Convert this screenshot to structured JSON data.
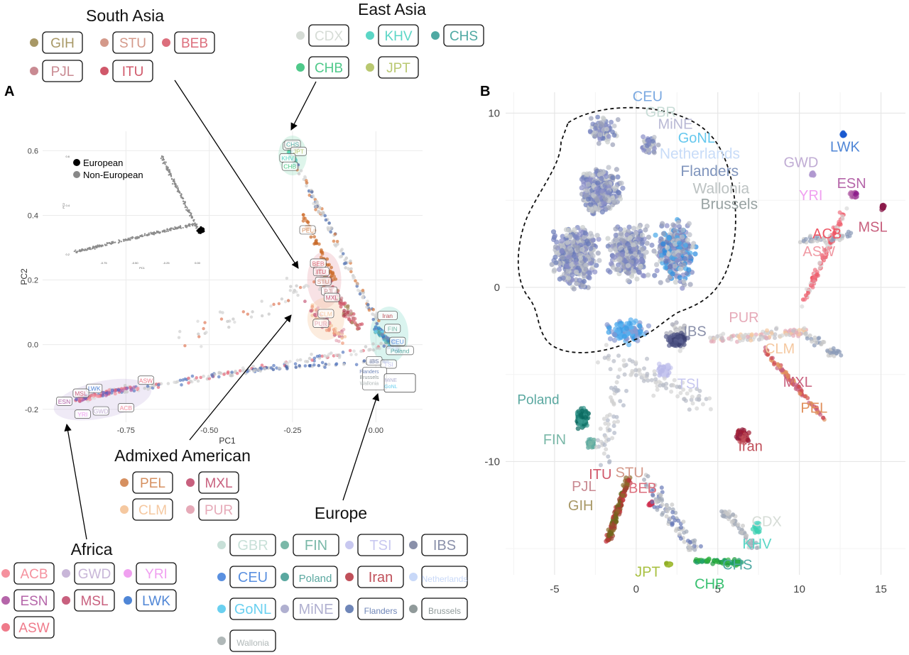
{
  "panel_a": {
    "letter": "A",
    "groups": [
      {
        "title": "South Asia",
        "items": [
          {
            "code": "GIH",
            "color": "#a89866"
          },
          {
            "code": "STU",
            "color": "#d4998a"
          },
          {
            "code": "BEB",
            "color": "#dc6e7c"
          },
          {
            "code": "PJL",
            "color": "#c98a92"
          },
          {
            "code": "ITU",
            "color": "#d0586a"
          }
        ]
      },
      {
        "title": "East Asia",
        "items": [
          {
            "code": "CDX",
            "color": "#d6dcd6"
          },
          {
            "code": "KHV",
            "color": "#5bd6c6"
          },
          {
            "code": "CHS",
            "color": "#4fa9a3"
          },
          {
            "code": "CHB",
            "color": "#4fc98a"
          },
          {
            "code": "JPT",
            "color": "#b9c870"
          }
        ]
      },
      {
        "title": "Admixed American",
        "items": [
          {
            "code": "PEL",
            "color": "#d69060"
          },
          {
            "code": "MXL",
            "color": "#c8607e"
          },
          {
            "code": "CLM",
            "color": "#f5c8a0"
          },
          {
            "code": "PUR",
            "color": "#e6aab8"
          }
        ]
      },
      {
        "title": "Africa",
        "items": [
          {
            "code": "ACB",
            "color": "#f5919e"
          },
          {
            "code": "GWD",
            "color": "#c8b6d8"
          },
          {
            "code": "YRI",
            "color": "#f0a0f0"
          },
          {
            "code": "ESN",
            "color": "#b565a9"
          },
          {
            "code": "MSL",
            "color": "#c8607e"
          },
          {
            "code": "LWK",
            "color": "#4f86d6"
          },
          {
            "code": "ASW",
            "color": "#ef7a8a"
          }
        ]
      },
      {
        "title": "Europe",
        "items": [
          {
            "code": "GBR",
            "color": "#c8e0d8"
          },
          {
            "code": "FIN",
            "color": "#7ab8a8"
          },
          {
            "code": "TSI",
            "color": "#c8c8f0"
          },
          {
            "code": "IBS",
            "color": "#8a90aa"
          },
          {
            "code": "CEU",
            "color": "#5a90e0"
          },
          {
            "code": "Poland",
            "color": "#5aa8a0"
          },
          {
            "code": "Iran",
            "color": "#c0505a"
          },
          {
            "code": "Netherlands",
            "color": "#c8d8f8"
          },
          {
            "code": "GoNL",
            "color": "#6ad0f0"
          },
          {
            "code": "MiNE",
            "color": "#b0b0d0"
          },
          {
            "code": "Flanders",
            "color": "#6f86b8"
          },
          {
            "code": "Brussels",
            "color": "#909a9a"
          },
          {
            "code": "Wallonia",
            "color": "#b0b8b8"
          }
        ]
      }
    ]
  },
  "panel_b": {
    "letter": "B"
  },
  "chart_data": [
    {
      "type": "scatter",
      "title": "",
      "xlabel": "PC1",
      "ylabel": "PC2",
      "xlim": [
        -1.0,
        0.14
      ],
      "ylim": [
        -0.24,
        0.66
      ],
      "xticks": [
        -0.75,
        -0.5,
        -0.25,
        0.0
      ],
      "xtick_labels": [
        "-0.75",
        "-0.50",
        "-0.25",
        "0.00"
      ],
      "yticks": [
        -0.2,
        0.0,
        0.2,
        0.4,
        0.6
      ],
      "ytick_labels": [
        "-0.2",
        "0.0",
        "0.2",
        "0.4",
        "0.6"
      ],
      "grid": true,
      "inset": {
        "legend": [
          "European",
          "Non-European"
        ],
        "legend_colors": [
          "#000000",
          "#888888"
        ],
        "xlabel": "PC1",
        "ylabel": "PC2",
        "xtick_labels": [
          "-0.75",
          "-0.50",
          "-0.25",
          "0.00"
        ],
        "ytick_labels": [
          "0.2",
          "0.4",
          "0.6"
        ]
      },
      "cluster_labels": [
        {
          "label": "GIH",
          "x": -0.255,
          "y": 0.615
        },
        {
          "label": "CHS",
          "x": -0.25,
          "y": 0.62
        },
        {
          "label": "JPT",
          "x": -0.232,
          "y": 0.598
        },
        {
          "label": "KHV",
          "x": -0.265,
          "y": 0.578
        },
        {
          "label": "CHB",
          "x": -0.258,
          "y": 0.552
        },
        {
          "label": "PEL",
          "x": -0.205,
          "y": 0.355
        },
        {
          "label": "BEB",
          "x": -0.173,
          "y": 0.252
        },
        {
          "label": "ITU",
          "x": -0.164,
          "y": 0.226
        },
        {
          "label": "STU",
          "x": -0.158,
          "y": 0.196
        },
        {
          "label": "PJL",
          "x": -0.14,
          "y": 0.166
        },
        {
          "label": "MXL",
          "x": -0.132,
          "y": 0.146
        },
        {
          "label": "CLM",
          "x": -0.15,
          "y": 0.096
        },
        {
          "label": "PUR",
          "x": -0.165,
          "y": 0.066
        },
        {
          "label": "Iran",
          "x": 0.035,
          "y": 0.09
        },
        {
          "label": "FIN",
          "x": 0.05,
          "y": 0.05
        },
        {
          "label": "CEU",
          "x": 0.065,
          "y": 0.01
        },
        {
          "label": "Poland",
          "x": 0.072,
          "y": -0.018
        },
        {
          "label": "IBS",
          "x": -0.005,
          "y": -0.05
        },
        {
          "label": "TSI",
          "x": 0.038,
          "y": -0.06
        },
        {
          "label": "ASW",
          "x": -0.69,
          "y": -0.11
        },
        {
          "label": "LWK",
          "x": -0.845,
          "y": -0.135
        },
        {
          "label": "MSL",
          "x": -0.885,
          "y": -0.15
        },
        {
          "label": "ESN",
          "x": -0.935,
          "y": -0.175
        },
        {
          "label": "ACB",
          "x": -0.75,
          "y": -0.195
        },
        {
          "label": "GWD",
          "x": -0.825,
          "y": -0.205
        },
        {
          "label": "YRI",
          "x": -0.88,
          "y": -0.215
        }
      ],
      "group_labels": [
        {
          "label": "Flanders",
          "x": -0.02,
          "y": -0.082
        },
        {
          "label": "Brussels",
          "x": -0.02,
          "y": -0.1
        },
        {
          "label": "Wallonia",
          "x": -0.02,
          "y": -0.118
        },
        {
          "label": "MiNE",
          "x": 0.045,
          "y": -0.108
        },
        {
          "label": "GoNL",
          "x": 0.045,
          "y": -0.128
        }
      ]
    },
    {
      "type": "scatter",
      "title": "",
      "xlabel": "",
      "ylabel": "",
      "xlim": [
        -8,
        16.5
      ],
      "ylim": [
        -16.5,
        11.2
      ],
      "xticks": [
        -5,
        0,
        5,
        10,
        15
      ],
      "xtick_labels": [
        "-5",
        "0",
        "5",
        "10",
        "15"
      ],
      "yticks": [
        -10,
        0,
        10
      ],
      "ytick_labels": [
        "-10",
        "0",
        "10"
      ],
      "grid": true,
      "labels": [
        {
          "label": "CEU",
          "x": 0.7,
          "y": 10.7,
          "color": "#7aa8e0"
        },
        {
          "label": "GBR",
          "x": 1.5,
          "y": 9.8,
          "color": "#c8dcd6"
        },
        {
          "label": "MiNE",
          "x": 2.4,
          "y": 9.1,
          "color": "#b8b8d4"
        },
        {
          "label": "GoNL",
          "x": 3.7,
          "y": 8.3,
          "color": "#66c8ee"
        },
        {
          "label": "Netherlands",
          "x": 3.9,
          "y": 7.4,
          "color": "#c8dcf8"
        },
        {
          "label": "Flanders",
          "x": 4.5,
          "y": 6.4,
          "color": "#7f94bc"
        },
        {
          "label": "Wallonia",
          "x": 5.2,
          "y": 5.4,
          "color": "#bcc2c2"
        },
        {
          "label": "Brussels",
          "x": 5.7,
          "y": 4.5,
          "color": "#98a2a2"
        },
        {
          "label": "LWK",
          "x": 12.8,
          "y": 7.8,
          "color": "#4f86d6"
        },
        {
          "label": "GWD",
          "x": 10.1,
          "y": 6.9,
          "color": "#c0acd4"
        },
        {
          "label": "ESN",
          "x": 13.2,
          "y": 5.7,
          "color": "#b565a9"
        },
        {
          "label": "YRI",
          "x": 10.7,
          "y": 5.0,
          "color": "#f0a0f0"
        },
        {
          "label": "MSL",
          "x": 14.5,
          "y": 3.2,
          "color": "#c8607e"
        },
        {
          "label": "ACB",
          "x": 11.7,
          "y": 2.8,
          "color": "#ee5564"
        },
        {
          "label": "ASW",
          "x": 11.2,
          "y": 1.8,
          "color": "#f09aa4"
        },
        {
          "label": "IBS",
          "x": 3.6,
          "y": -2.8,
          "color": "#8a90aa"
        },
        {
          "label": "PUR",
          "x": 6.6,
          "y": -2.0,
          "color": "#e6aab8"
        },
        {
          "label": "CLM",
          "x": 8.8,
          "y": -3.8,
          "color": "#f5c8a0"
        },
        {
          "label": "TSI",
          "x": 3.2,
          "y": -5.8,
          "color": "#c8c8f0"
        },
        {
          "label": "MXL",
          "x": 9.9,
          "y": -5.7,
          "color": "#c8607e"
        },
        {
          "label": "PEL",
          "x": 10.9,
          "y": -7.2,
          "color": "#e0905c"
        },
        {
          "label": "Poland",
          "x": -6.0,
          "y": -6.7,
          "color": "#5aa8a0"
        },
        {
          "label": "FIN",
          "x": -5.0,
          "y": -9.0,
          "color": "#7ab8a8"
        },
        {
          "label": "Iran",
          "x": 7.0,
          "y": -9.4,
          "color": "#c0505a"
        },
        {
          "label": "ITU",
          "x": -2.2,
          "y": -11.0,
          "color": "#d0586a"
        },
        {
          "label": "STU",
          "x": -0.4,
          "y": -10.9,
          "color": "#d4998a"
        },
        {
          "label": "PJL",
          "x": -3.2,
          "y": -11.7,
          "color": "#c98a92"
        },
        {
          "label": "BEB",
          "x": 0.4,
          "y": -11.8,
          "color": "#dc6e7c"
        },
        {
          "label": "GIH",
          "x": -3.4,
          "y": -12.8,
          "color": "#a89866"
        },
        {
          "label": "CDX",
          "x": 8.0,
          "y": -13.7,
          "color": "#d6dcd6"
        },
        {
          "label": "KHV",
          "x": 7.4,
          "y": -15.0,
          "color": "#5bd6c6"
        },
        {
          "label": "CHS",
          "x": 6.2,
          "y": -16.2,
          "color": "#4fa9a3"
        },
        {
          "label": "JPT",
          "x": 0.7,
          "y": -16.6,
          "color": "#a8c040"
        },
        {
          "label": "CHB",
          "x": 4.5,
          "y": -17.3,
          "color": "#38c070"
        }
      ]
    }
  ]
}
